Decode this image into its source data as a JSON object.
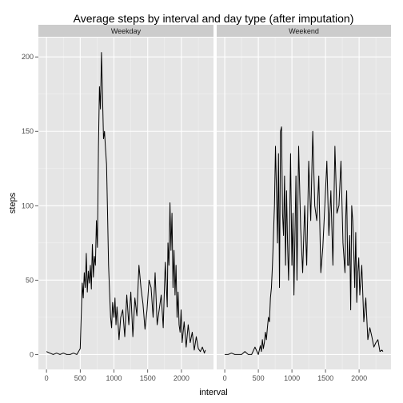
{
  "chart_data": {
    "type": "line",
    "title": "Average steps by interval and day type (after imputation)",
    "xlabel": "interval",
    "ylabel": "steps",
    "xlim": [
      -120,
      2475
    ],
    "ylim": [
      -10,
      213
    ],
    "x_ticks": [
      0,
      500,
      1000,
      1500,
      2000
    ],
    "x_tick_labels": [
      "0",
      "500",
      "1000",
      "1500",
      "2000"
    ],
    "y_ticks": [
      0,
      50,
      100,
      150,
      200
    ],
    "y_tick_labels": [
      "0",
      "50",
      "100",
      "150",
      "200"
    ],
    "grid": true,
    "facets": [
      {
        "name": "Weekday",
        "x": [
          0,
          50,
          100,
          150,
          200,
          250,
          300,
          350,
          400,
          450,
          500,
          530,
          545,
          560,
          575,
          590,
          605,
          620,
          635,
          650,
          665,
          680,
          695,
          710,
          725,
          740,
          755,
          770,
          785,
          800,
          815,
          830,
          845,
          860,
          875,
          890,
          905,
          920,
          935,
          950,
          965,
          980,
          1000,
          1015,
          1030,
          1045,
          1060,
          1075,
          1100,
          1130,
          1160,
          1190,
          1220,
          1250,
          1280,
          1310,
          1340,
          1370,
          1400,
          1430,
          1460,
          1490,
          1520,
          1550,
          1580,
          1610,
          1640,
          1670,
          1700,
          1730,
          1760,
          1790,
          1800,
          1815,
          1830,
          1845,
          1860,
          1875,
          1890,
          1905,
          1920,
          1935,
          1950,
          1965,
          1980,
          1995,
          2010,
          2040,
          2070,
          2100,
          2130,
          2160,
          2190,
          2220,
          2250,
          2280,
          2310,
          2340,
          2355
        ],
        "values": [
          2,
          1,
          0,
          1,
          0,
          1,
          0,
          0,
          1,
          0,
          4,
          48,
          38,
          55,
          45,
          68,
          42,
          56,
          48,
          60,
          44,
          74,
          52,
          66,
          60,
          90,
          72,
          140,
          180,
          165,
          203,
          175,
          145,
          150,
          138,
          128,
          95,
          60,
          42,
          25,
          18,
          35,
          25,
          38,
          20,
          32,
          22,
          10,
          25,
          30,
          12,
          40,
          20,
          42,
          12,
          38,
          26,
          60,
          45,
          34,
          17,
          30,
          50,
          45,
          25,
          55,
          20,
          30,
          40,
          18,
          62,
          32,
          75,
          60,
          102,
          70,
          95,
          45,
          70,
          40,
          60,
          25,
          42,
          20,
          15,
          30,
          8,
          22,
          5,
          20,
          8,
          15,
          3,
          12,
          4,
          2,
          5,
          1,
          3
        ]
      },
      {
        "name": "Weekend",
        "x": [
          0,
          50,
          100,
          150,
          200,
          250,
          300,
          350,
          400,
          450,
          500,
          530,
          545,
          560,
          575,
          590,
          605,
          620,
          635,
          650,
          665,
          680,
          695,
          710,
          725,
          740,
          755,
          770,
          785,
          800,
          815,
          830,
          845,
          860,
          875,
          890,
          905,
          920,
          935,
          950,
          965,
          980,
          1000,
          1015,
          1030,
          1045,
          1060,
          1075,
          1100,
          1130,
          1160,
          1190,
          1220,
          1250,
          1280,
          1310,
          1340,
          1370,
          1400,
          1430,
          1460,
          1490,
          1520,
          1550,
          1580,
          1610,
          1640,
          1670,
          1700,
          1730,
          1760,
          1790,
          1800,
          1815,
          1830,
          1845,
          1860,
          1875,
          1890,
          1905,
          1920,
          1935,
          1950,
          1965,
          1980,
          1995,
          2010,
          2040,
          2070,
          2100,
          2130,
          2160,
          2190,
          2220,
          2250,
          2280,
          2310,
          2340,
          2355
        ],
        "values": [
          0,
          0,
          1,
          0,
          0,
          0,
          2,
          0,
          0,
          5,
          0,
          6,
          2,
          10,
          4,
          8,
          15,
          10,
          18,
          25,
          22,
          38,
          45,
          60,
          80,
          100,
          140,
          110,
          75,
          135,
          45,
          150,
          153,
          95,
          80,
          120,
          60,
          110,
          75,
          50,
          85,
          135,
          60,
          95,
          40,
          80,
          120,
          50,
          140,
          85,
          55,
          100,
          60,
          130,
          90,
          150,
          100,
          90,
          120,
          55,
          72,
          100,
          130,
          80,
          110,
          60,
          140,
          95,
          100,
          130,
          75,
          55,
          90,
          110,
          60,
          60,
          80,
          30,
          100,
          90,
          70,
          45,
          82,
          35,
          55,
          65,
          40,
          60,
          22,
          38,
          10,
          18,
          12,
          5,
          8,
          10,
          2,
          3,
          2
        ]
      }
    ]
  }
}
